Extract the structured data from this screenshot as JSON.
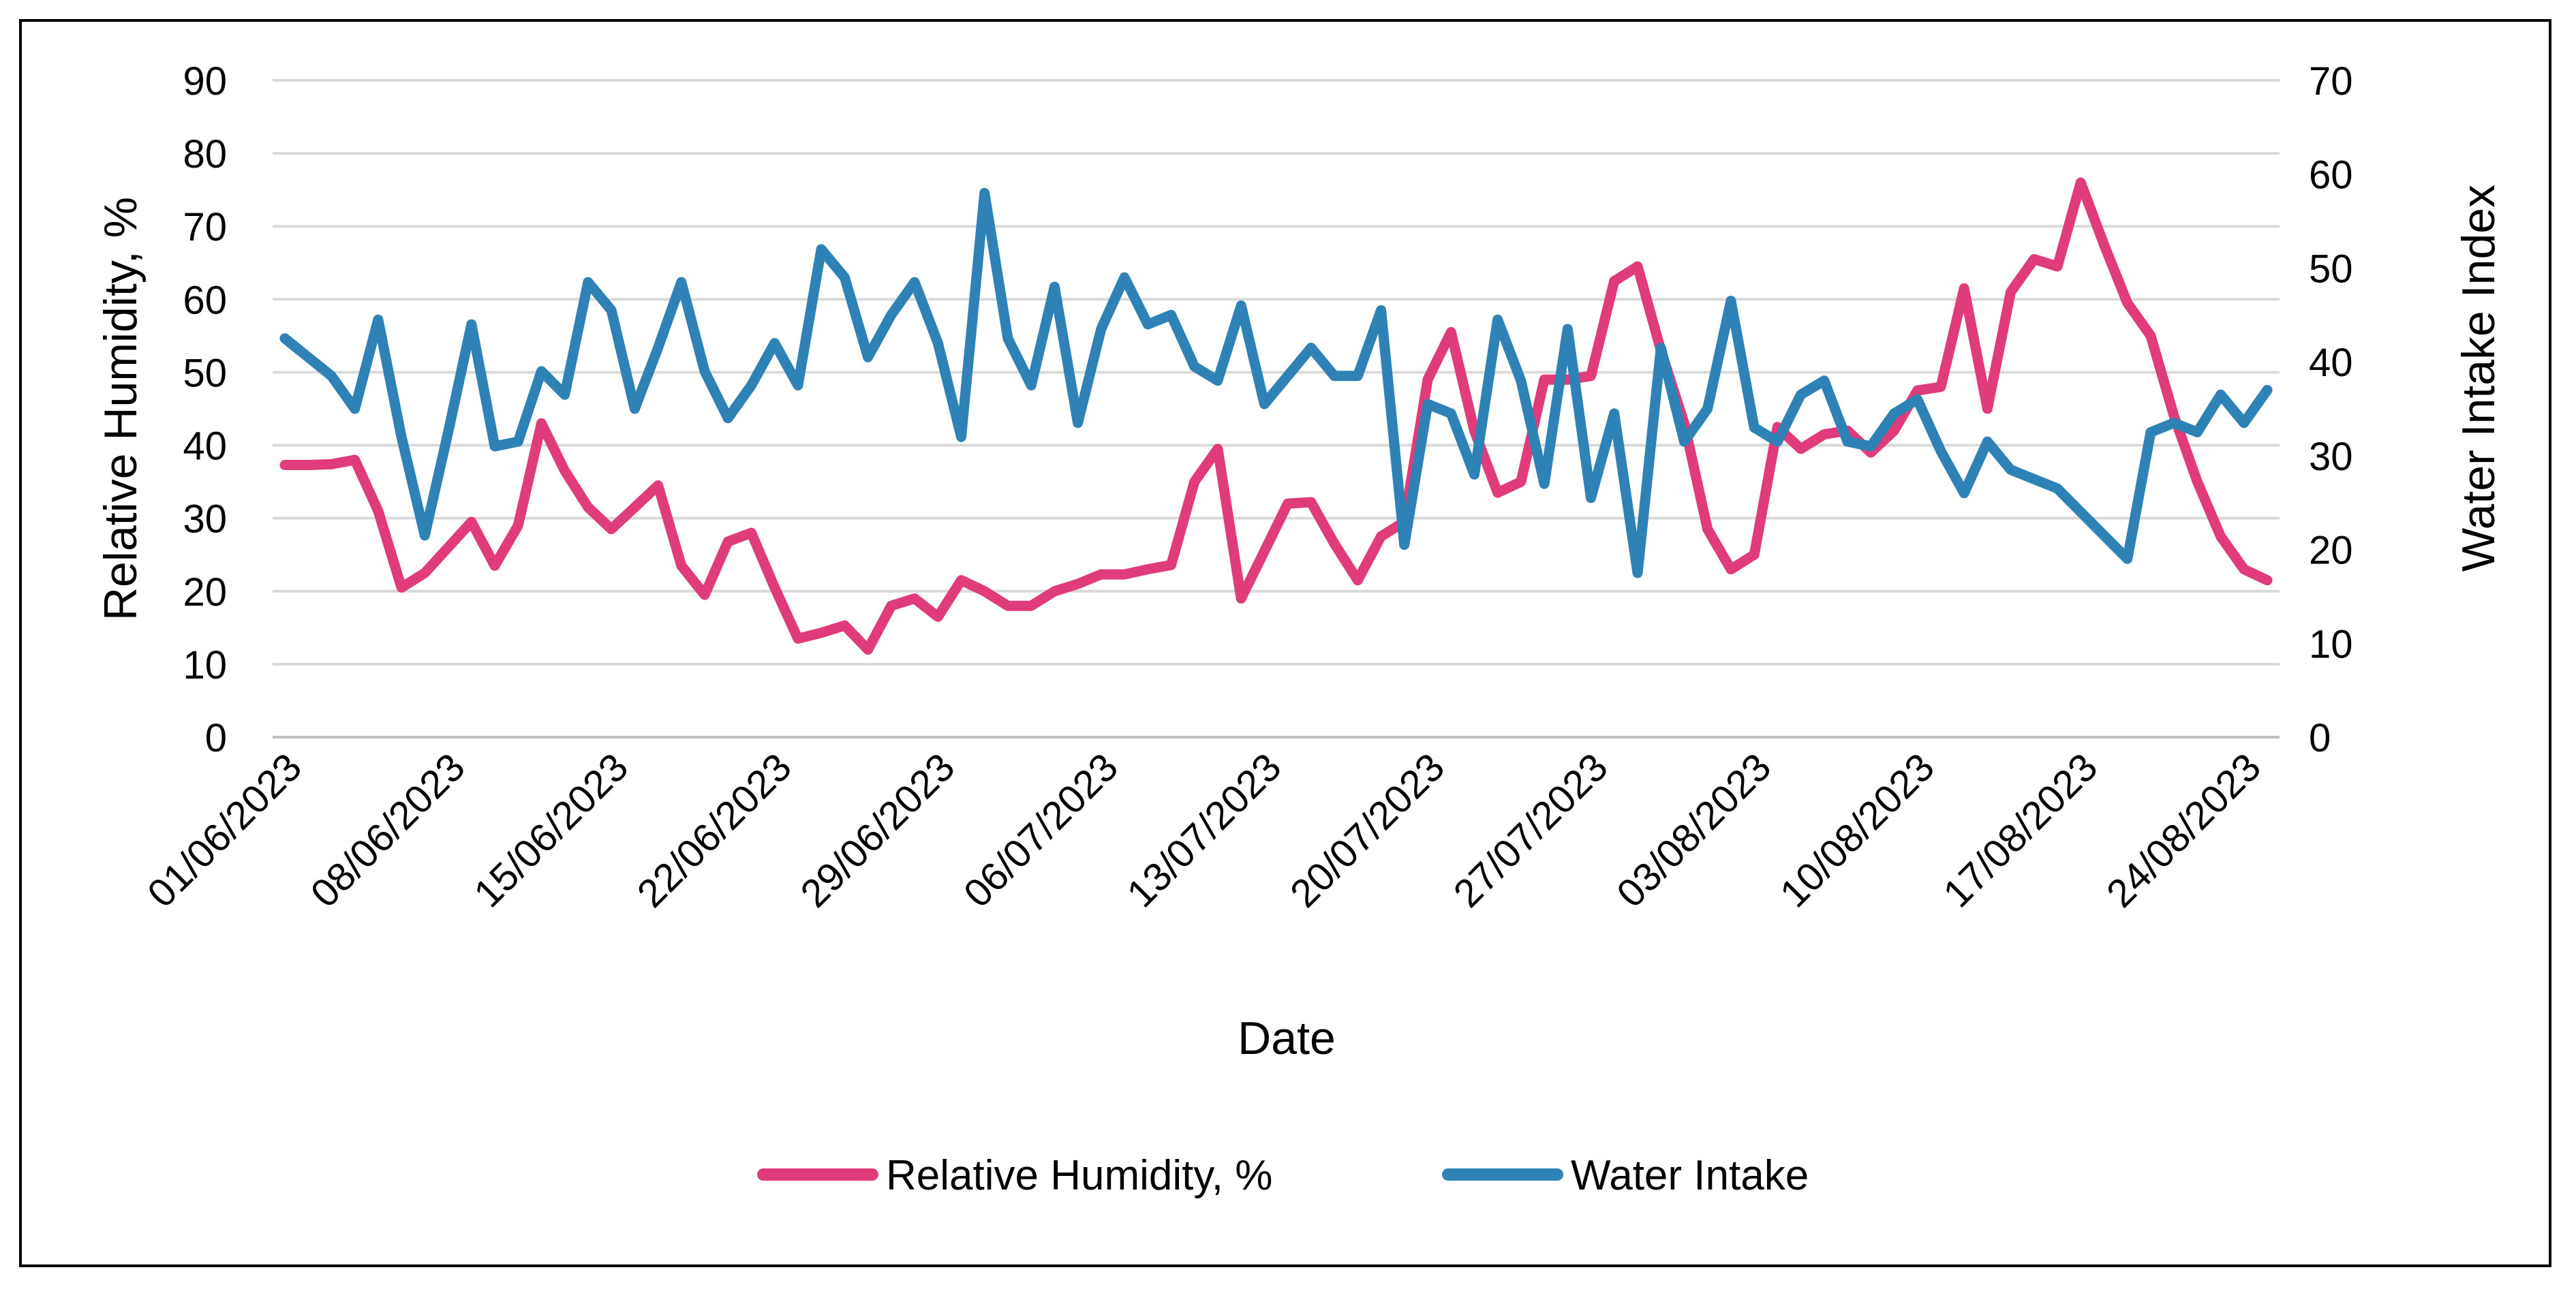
{
  "chart_data": {
    "type": "line",
    "title": "",
    "xlabel": "Date",
    "ylabel": "Relative Humidity, %",
    "y2label": "Water Intake  Index",
    "ylim": [
      0,
      90
    ],
    "y2lim": [
      0,
      70
    ],
    "yticks": [
      "0",
      "10",
      "20",
      "30",
      "40",
      "50",
      "60",
      "70",
      "80",
      "90"
    ],
    "y2ticks": [
      "0",
      "10",
      "20",
      "30",
      "40",
      "50",
      "60",
      "70"
    ],
    "xtick_labels": [
      "01/06/2023",
      "08/06/2023",
      "15/06/2023",
      "22/06/2023",
      "29/06/2023",
      "06/07/2023",
      "13/07/2023",
      "20/07/2023",
      "27/07/2023",
      "03/08/2023",
      "10/08/2023",
      "17/08/2023",
      "24/08/2023"
    ],
    "grid": true,
    "legend_position": "bottom",
    "series": [
      {
        "name": "Relative Humidity, %",
        "axis": "left",
        "color": "#e03c7c",
        "values": [
          37.3,
          37.3,
          37.4,
          38.0,
          31.0,
          20.5,
          22.5,
          26.0,
          29.5,
          23.5,
          29.0,
          43.0,
          36.5,
          31.5,
          28.5,
          31.5,
          34.5,
          23.5,
          19.5,
          26.8,
          28.0,
          20.5,
          13.5,
          14.3,
          15.3,
          12.0,
          18.0,
          19.0,
          16.5,
          21.5,
          20.0,
          18.0,
          18.0,
          20.0,
          21.0,
          22.3,
          22.3,
          23.0,
          23.6,
          35.0,
          39.5,
          19.0,
          25.5,
          32.0,
          32.2,
          26.5,
          21.5,
          27.5,
          29.5,
          49.0,
          55.5,
          42.0,
          33.5,
          35.0,
          49.0,
          49.0,
          49.5,
          62.5,
          64.5,
          53.0,
          43.0,
          28.5,
          23.0,
          25.0,
          42.5,
          39.5,
          41.5,
          42.0,
          39.0,
          42.0,
          47.5,
          48.0,
          61.5,
          45.0,
          61.0,
          65.5,
          64.5,
          76.0,
          67.5,
          59.5,
          55.0,
          44.0,
          35.0,
          27.5,
          23.0,
          21.5
        ]
      },
      {
        "name": "Water Intake",
        "axis": "right",
        "color": "#2e82b5",
        "values": [
          42.5,
          40.5,
          38.5,
          35.0,
          44.5,
          32.0,
          21.5,
          32.5,
          44.0,
          31.0,
          31.5,
          39.0,
          36.5,
          48.5,
          45.5,
          35.0,
          41.5,
          48.5,
          39.0,
          34.0,
          37.5,
          42.0,
          37.5,
          52.0,
          49.0,
          40.5,
          45.0,
          48.5,
          42.0,
          32.0,
          58.0,
          42.5,
          37.5,
          48.0,
          33.5,
          43.5,
          49.0,
          44.0,
          45.0,
          39.5,
          38.0,
          46.0,
          35.5,
          38.5,
          41.5,
          38.5,
          38.5,
          45.5,
          20.5,
          35.5,
          34.5,
          28.0,
          44.5,
          38.0,
          27.0,
          43.5,
          25.5,
          34.5,
          17.5,
          41.5,
          31.5,
          35.0,
          46.5,
          33.0,
          31.5,
          36.5,
          38.0,
          31.5,
          31.0,
          34.5,
          36.0,
          30.5,
          26.0,
          31.5,
          28.5,
          27.5,
          26.5,
          24.0,
          21.5,
          19.0,
          32.5,
          33.5,
          32.5,
          36.5,
          33.5,
          37.0
        ]
      }
    ]
  }
}
